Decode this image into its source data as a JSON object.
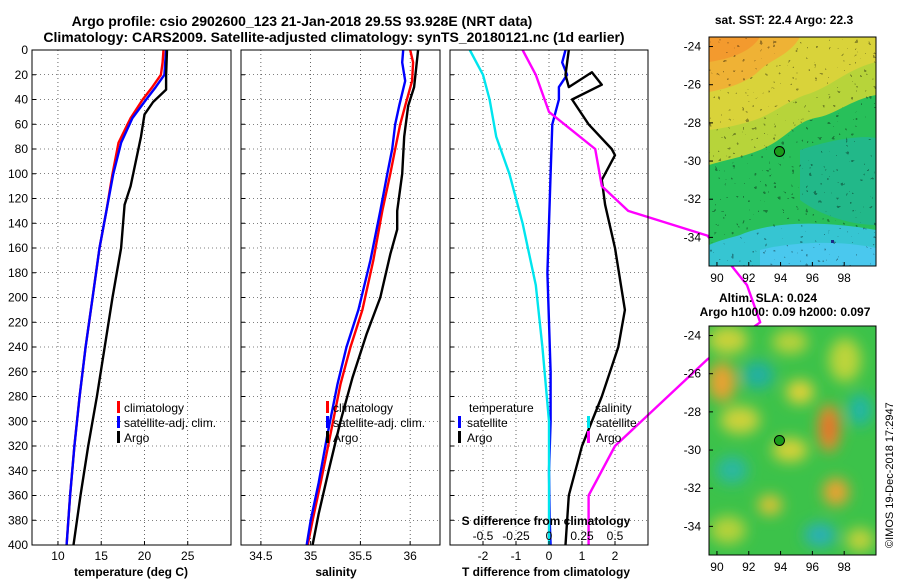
{
  "title": {
    "line1": "Argo profile: csio 2902600_123 21-Jan-2018 29.5S 93.928E (NRT data)",
    "line2": "Climatology: CARS2009. Satellite-adjusted climatology: synTS_20180121.nc (1d earlier)"
  },
  "credit": "©IMOS 19-Dec-2018 17:2947",
  "colors": {
    "clim": "#ff0000",
    "sat": "#0000ff",
    "argo": "#000000",
    "sat_s": "#00e5ee",
    "argo_s": "#ff00ff",
    "dot": "#1a9a1a"
  },
  "chart_data": [
    {
      "type": "line",
      "name": "temperature",
      "xlabel": "temperature (deg C)",
      "xlim": [
        7,
        30
      ],
      "xticks": [
        10,
        15,
        20,
        25
      ],
      "ylim": [
        0,
        400
      ],
      "yticks": [
        0,
        20,
        40,
        60,
        80,
        100,
        120,
        140,
        160,
        180,
        200,
        220,
        240,
        260,
        280,
        300,
        320,
        340,
        360,
        380,
        400
      ],
      "legend": [
        "climatology",
        "satellite-adj. clim.",
        "Argo"
      ],
      "series": [
        {
          "name": "climatology",
          "color": "#ff0000",
          "points": [
            [
              22.2,
              0
            ],
            [
              22.1,
              10
            ],
            [
              21.9,
              20
            ],
            [
              20.9,
              30
            ],
            [
              19.8,
              40
            ],
            [
              18.4,
              55
            ],
            [
              17.0,
              75
            ],
            [
              16.3,
              100
            ],
            [
              15.6,
              130
            ],
            [
              14.8,
              160
            ],
            [
              14.0,
              200
            ],
            [
              13.2,
              240
            ],
            [
              12.5,
              280
            ],
            [
              11.9,
              320
            ],
            [
              11.4,
              360
            ],
            [
              11.0,
              400
            ]
          ]
        },
        {
          "name": "satellite-adj. clim.",
          "color": "#0000ff",
          "points": [
            [
              22.5,
              0
            ],
            [
              22.4,
              10
            ],
            [
              22.3,
              20
            ],
            [
              21.3,
              30
            ],
            [
              20.2,
              40
            ],
            [
              18.6,
              55
            ],
            [
              17.3,
              75
            ],
            [
              16.4,
              100
            ],
            [
              15.6,
              130
            ],
            [
              14.8,
              160
            ],
            [
              14.0,
              200
            ],
            [
              13.2,
              240
            ],
            [
              12.5,
              280
            ],
            [
              11.9,
              320
            ],
            [
              11.4,
              360
            ],
            [
              11.0,
              400
            ]
          ]
        },
        {
          "name": "Argo",
          "color": "#000000",
          "points": [
            [
              22.6,
              0
            ],
            [
              22.5,
              20
            ],
            [
              22.5,
              32
            ],
            [
              21.0,
              42
            ],
            [
              20.0,
              52
            ],
            [
              19.6,
              70
            ],
            [
              19.0,
              90
            ],
            [
              18.4,
              110
            ],
            [
              17.7,
              125
            ],
            [
              17.3,
              160
            ],
            [
              16.3,
              200
            ],
            [
              15.4,
              240
            ],
            [
              14.5,
              280
            ],
            [
              13.5,
              320
            ],
            [
              12.6,
              360
            ],
            [
              11.8,
              400
            ]
          ]
        }
      ]
    },
    {
      "type": "line",
      "name": "salinity",
      "xlabel": "salinity",
      "xlim": [
        34.3,
        36.3
      ],
      "xticks": [
        34.5,
        35,
        35.5,
        36
      ],
      "xtick_labels": [
        "34.5",
        "35",
        "35.5",
        "36"
      ],
      "ylim": [
        0,
        400
      ],
      "legend": [
        "climatology",
        "satellite-adj. clim.",
        "Argo"
      ],
      "series": [
        {
          "name": "climatology",
          "color": "#ff0000",
          "points": [
            [
              36.0,
              0
            ],
            [
              36.03,
              10
            ],
            [
              36.02,
              25
            ],
            [
              35.95,
              45
            ],
            [
              35.9,
              60
            ],
            [
              35.85,
              80
            ],
            [
              35.8,
              100
            ],
            [
              35.72,
              130
            ],
            [
              35.63,
              170
            ],
            [
              35.52,
              210
            ],
            [
              35.4,
              240
            ],
            [
              35.3,
              270
            ],
            [
              35.2,
              310
            ],
            [
              35.1,
              350
            ],
            [
              35.02,
              380
            ],
            [
              34.97,
              400
            ]
          ]
        },
        {
          "name": "satellite-adj. clim.",
          "color": "#0000ff",
          "points": [
            [
              35.93,
              0
            ],
            [
              35.92,
              10
            ],
            [
              35.95,
              25
            ],
            [
              35.89,
              45
            ],
            [
              35.85,
              60
            ],
            [
              35.82,
              80
            ],
            [
              35.77,
              100
            ],
            [
              35.7,
              130
            ],
            [
              35.6,
              170
            ],
            [
              35.48,
              210
            ],
            [
              35.36,
              240
            ],
            [
              35.27,
              270
            ],
            [
              35.17,
              310
            ],
            [
              35.08,
              350
            ],
            [
              35.0,
              380
            ],
            [
              34.96,
              400
            ]
          ]
        },
        {
          "name": "Argo",
          "color": "#000000",
          "points": [
            [
              36.08,
              0
            ],
            [
              36.06,
              15
            ],
            [
              36.04,
              30
            ],
            [
              35.98,
              45
            ],
            [
              35.94,
              70
            ],
            [
              35.92,
              100
            ],
            [
              35.87,
              130
            ],
            [
              35.87,
              145
            ],
            [
              35.8,
              165
            ],
            [
              35.7,
              200
            ],
            [
              35.56,
              230
            ],
            [
              35.42,
              265
            ],
            [
              35.3,
              300
            ],
            [
              35.18,
              340
            ],
            [
              35.08,
              375
            ],
            [
              35.02,
              400
            ]
          ]
        }
      ]
    },
    {
      "type": "line",
      "name": "difference from climatology",
      "xlabel": "T difference from climatology",
      "x2label": "S difference from climatology",
      "xlim": [
        -3,
        3
      ],
      "xticks": [
        -2,
        -1,
        0,
        1,
        2
      ],
      "x2lim": [
        -0.75,
        0.75
      ],
      "x2ticks": [
        -0.5,
        -0.25,
        0,
        0.25,
        0.5
      ],
      "x2tick_labels": [
        "-0.5",
        "-0.25",
        "0",
        "0.25",
        "0.5"
      ],
      "ylim": [
        0,
        400
      ],
      "legend_temperature_title": "temperature",
      "legend_salinity_title": "salinity",
      "legend_temperature": [
        "satellite",
        "Argo"
      ],
      "legend_salinity": [
        "satellite",
        "Argo"
      ],
      "series": [
        {
          "name": "T satellite",
          "color": "#0000ff",
          "points": [
            [
              0.5,
              0
            ],
            [
              0.4,
              10
            ],
            [
              0.55,
              20
            ],
            [
              0.3,
              30
            ],
            [
              0.3,
              40
            ],
            [
              0.1,
              60
            ],
            [
              0.05,
              100
            ],
            [
              0.0,
              140
            ],
            [
              -0.05,
              180
            ],
            [
              0.0,
              220
            ],
            [
              0.05,
              260
            ],
            [
              0.05,
              300
            ],
            [
              0.0,
              340
            ],
            [
              0.02,
              380
            ],
            [
              0.05,
              400
            ]
          ]
        },
        {
          "name": "T Argo",
          "color": "#000000",
          "points": [
            [
              0.6,
              0
            ],
            [
              0.5,
              20
            ],
            [
              0.6,
              30
            ],
            [
              1.3,
              18
            ],
            [
              1.6,
              28
            ],
            [
              0.7,
              40
            ],
            [
              1.2,
              60
            ],
            [
              1.9,
              80
            ],
            [
              2.0,
              85
            ],
            [
              1.6,
              105
            ],
            [
              1.7,
              125
            ],
            [
              2.0,
              160
            ],
            [
              2.3,
              210
            ],
            [
              2.1,
              240
            ],
            [
              1.6,
              280
            ],
            [
              1.0,
              320
            ],
            [
              0.6,
              360
            ],
            [
              0.5,
              400
            ]
          ]
        },
        {
          "name": "S satellite",
          "color": "#00e5ee",
          "points": [
            [
              -0.6,
              0
            ],
            [
              -0.5,
              20
            ],
            [
              -0.45,
              40
            ],
            [
              -0.4,
              70
            ],
            [
              -0.3,
              100
            ],
            [
              -0.2,
              140
            ],
            [
              -0.1,
              190
            ],
            [
              -0.05,
              240
            ],
            [
              0.0,
              300
            ],
            [
              0.0,
              360
            ],
            [
              0.0,
              400
            ]
          ]
        },
        {
          "name": "S Argo",
          "color": "#ff00ff",
          "points": [
            [
              -0.2,
              0
            ],
            [
              -0.1,
              20
            ],
            [
              0.0,
              50
            ],
            [
              0.35,
              80
            ],
            [
              0.4,
              110
            ],
            [
              0.6,
              130
            ],
            [
              1.2,
              150
            ],
            [
              1.5,
              190
            ],
            [
              1.6,
              220
            ],
            [
              1.2,
              250
            ],
            [
              0.9,
              280
            ],
            [
              0.5,
              320
            ],
            [
              0.3,
              360
            ],
            [
              0.3,
              400
            ]
          ]
        }
      ]
    },
    {
      "type": "heatmap",
      "name": "satellite SST map",
      "title": "sat. SST: 22.4 Argo: 22.3",
      "xlim": [
        89.5,
        100
      ],
      "xticks": [
        90,
        92,
        94,
        96,
        98
      ],
      "ylim": [
        -35.5,
        -23.5
      ],
      "yticks": [
        -24,
        -26,
        -28,
        -30,
        -32,
        -34
      ],
      "argo_location": [
        93.93,
        -29.5
      ]
    },
    {
      "type": "heatmap",
      "name": "altimetry SLA map",
      "title": "Altim. SLA: 0.024",
      "subtitle": "Argo h1000: 0.09 h2000: 0.097",
      "xlim": [
        89.5,
        100
      ],
      "xticks": [
        90,
        92,
        94,
        96,
        98
      ],
      "ylim": [
        -35.5,
        -23.5
      ],
      "yticks": [
        -24,
        -26,
        -28,
        -30,
        -32,
        -34
      ],
      "argo_location": [
        93.93,
        -29.5
      ]
    }
  ]
}
